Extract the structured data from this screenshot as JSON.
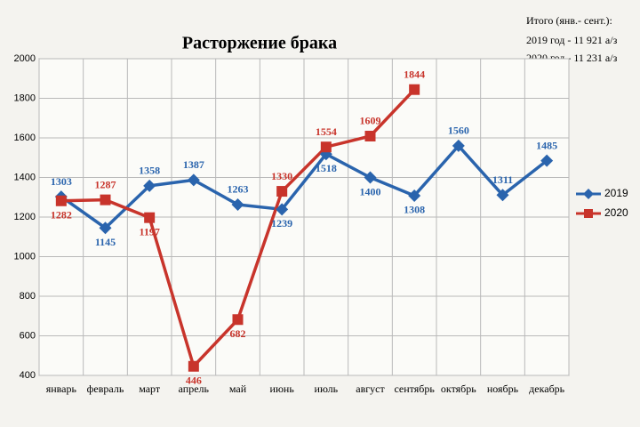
{
  "chart_data": {
    "type": "line",
    "title": "Расторжение брака",
    "annotations": [
      "Итого (янв.- сент.):",
      "2019 год - 11 921 а/з",
      "2020 год - 11 231 а/з"
    ],
    "categories": [
      "январь",
      "февраль",
      "март",
      "апрель",
      "май",
      "июнь",
      "июль",
      "август",
      "сентябрь",
      "октябрь",
      "ноябрь",
      "декабрь"
    ],
    "series": [
      {
        "name": "2019",
        "color": "#2a64ad",
        "marker": "diamond",
        "values": [
          1303,
          1145,
          1358,
          1387,
          1263,
          1239,
          1518,
          1400,
          1308,
          1560,
          1311,
          1485
        ]
      },
      {
        "name": "2020",
        "color": "#c8342b",
        "marker": "square",
        "values": [
          1282,
          1287,
          1197,
          446,
          682,
          1330,
          1554,
          1609,
          1844,
          null,
          null,
          null
        ]
      }
    ],
    "ylim": [
      400,
      2000
    ],
    "yticks": [
      400,
      600,
      800,
      1000,
      1200,
      1400,
      1600,
      1800,
      2000
    ],
    "grid": true,
    "legend": "right"
  }
}
